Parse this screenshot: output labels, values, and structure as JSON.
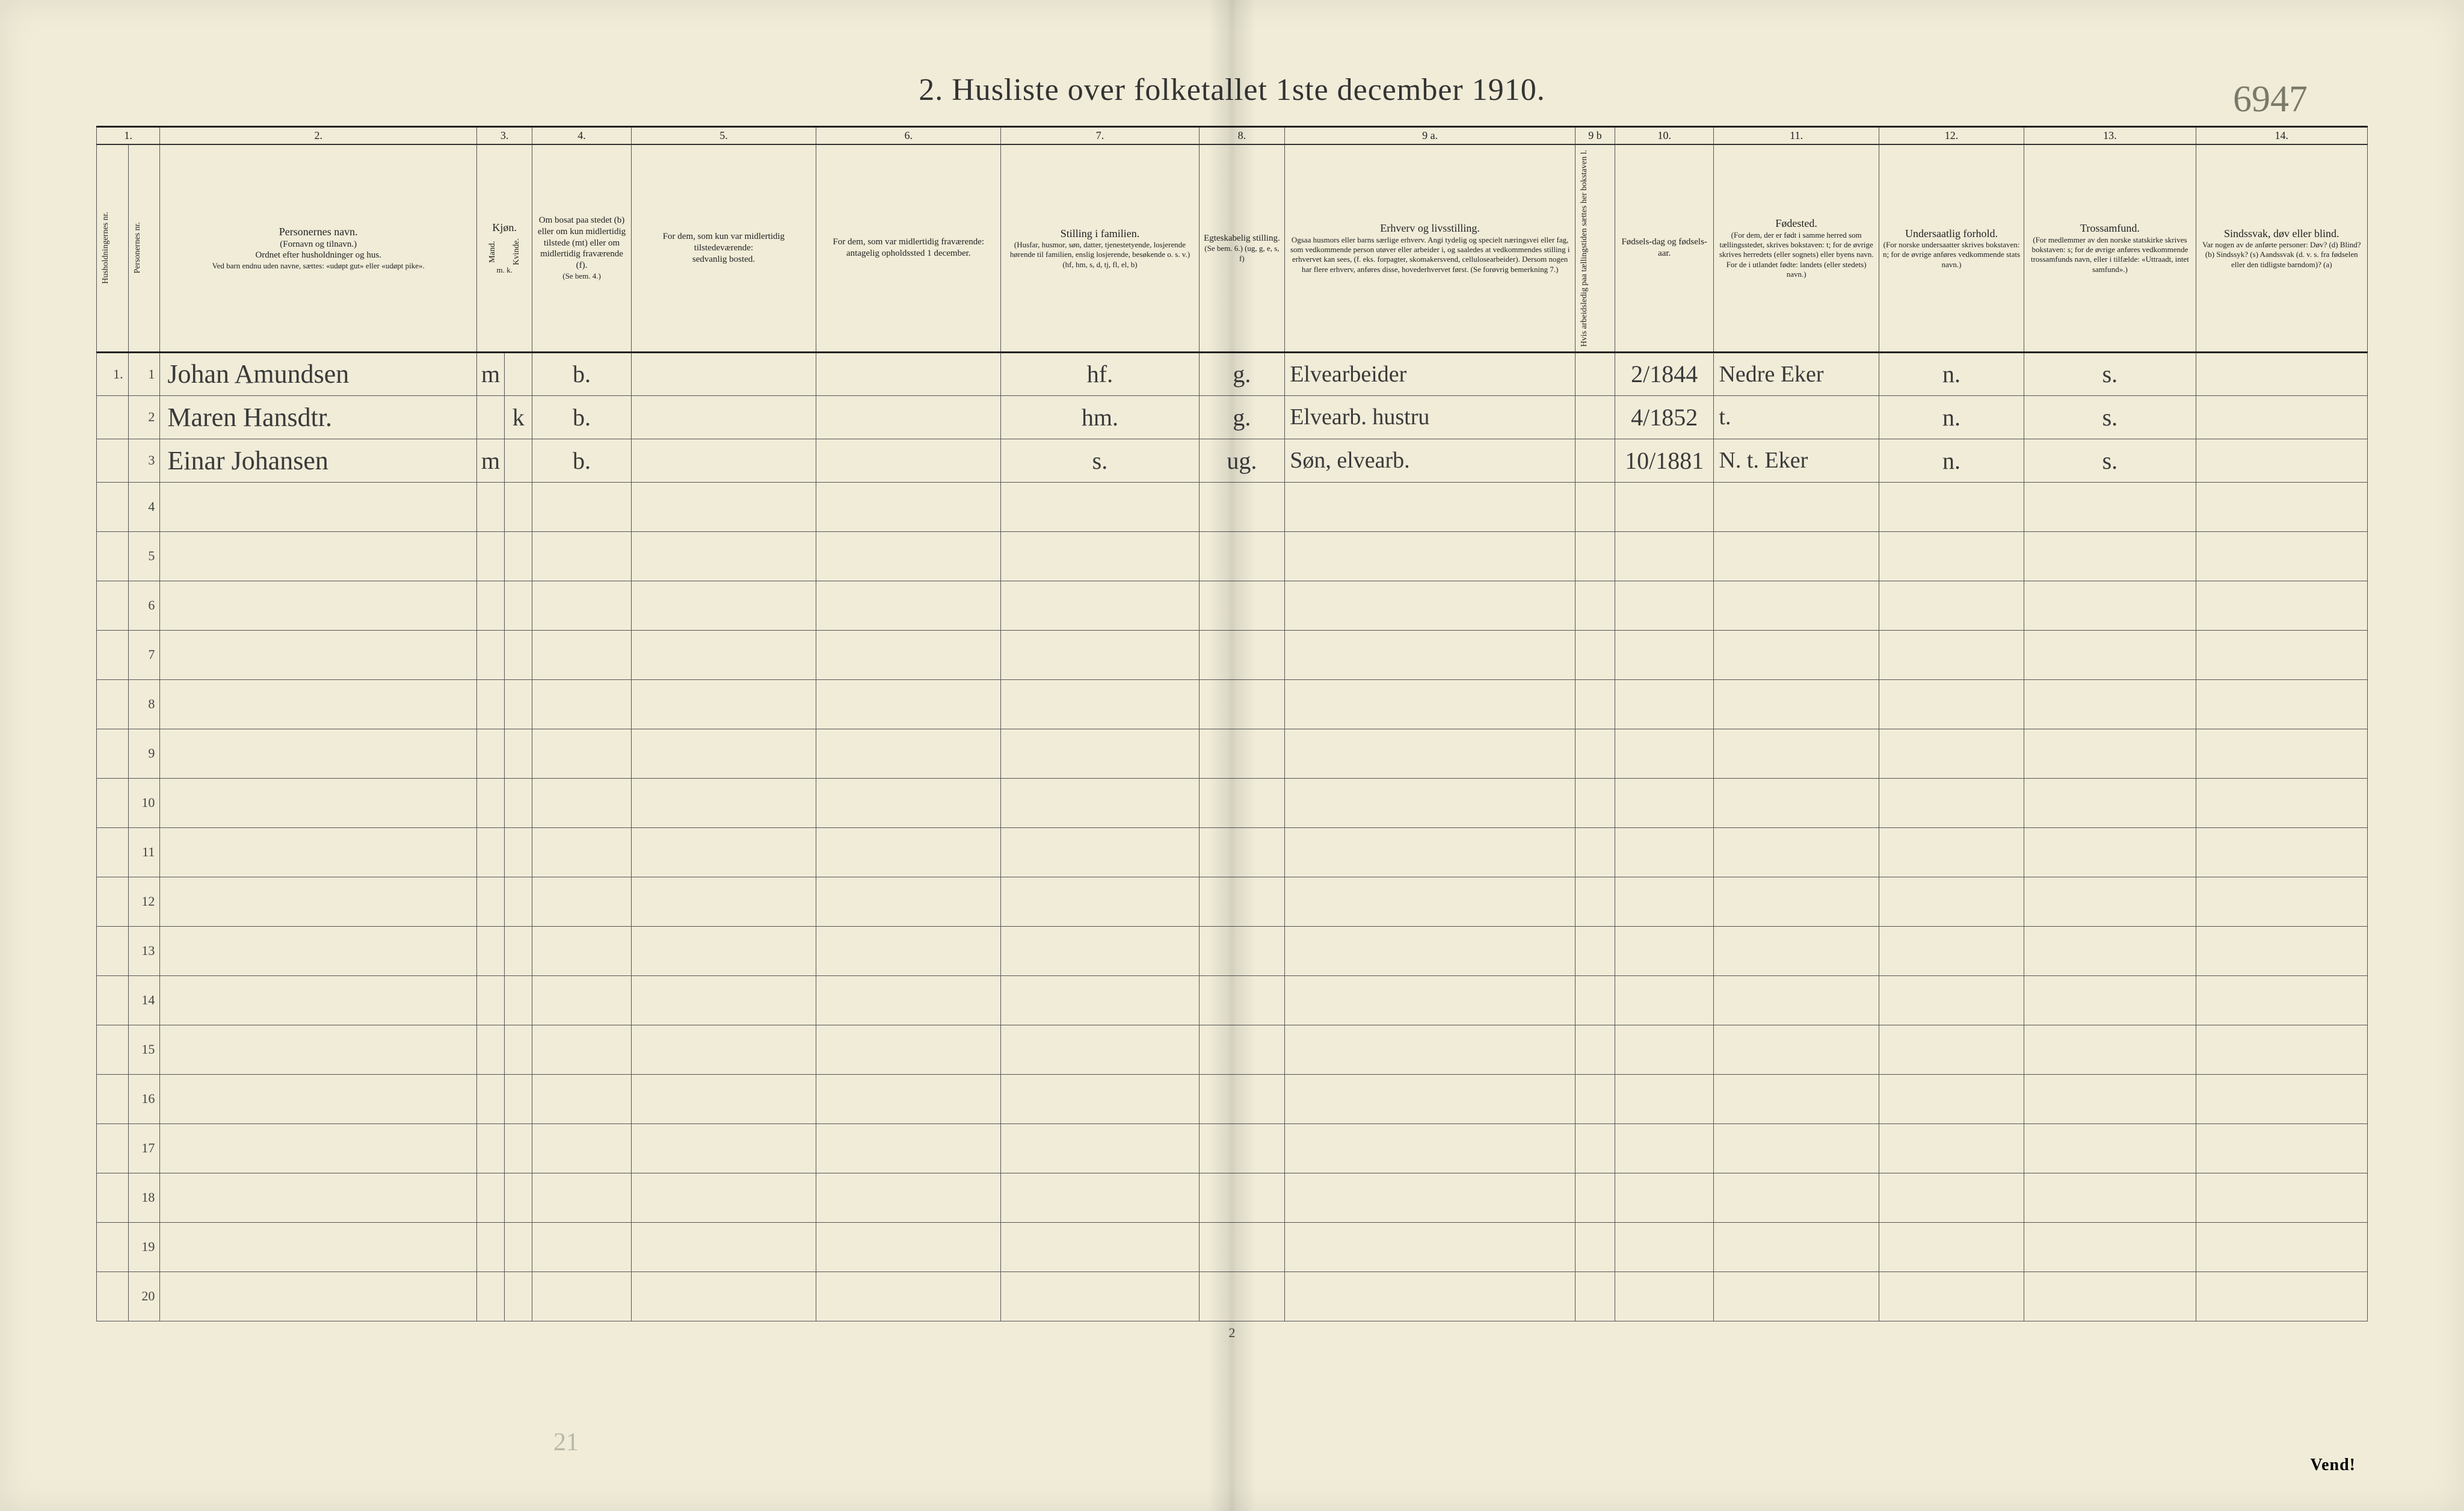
{
  "title": "2.  Husliste over folketallet 1ste december 1910.",
  "handwritten_page_no": "6947",
  "footer_page_no": "2",
  "vend_text": "Vend!",
  "faint_pencil": "21",
  "col_numbers": [
    "1.",
    "2.",
    "3.",
    "4.",
    "5.",
    "6.",
    "7.",
    "8.",
    "9 a.",
    "9 b",
    "10.",
    "11.",
    "12.",
    "13.",
    "14."
  ],
  "headers": {
    "c1a": "Husholdningernes nr.",
    "c1b": "Personernes nr.",
    "c2_title": "Personernes navn.",
    "c2_sub1": "(Fornavn og tilnavn.)",
    "c2_sub2": "Ordnet efter husholdninger og hus.",
    "c2_sub3": "Ved barn endnu uden navne, sættes: «udøpt gut» eller «udøpt pike».",
    "c3_title": "Kjøn.",
    "c3_m": "Mand.",
    "c3_k": "Kvinde.",
    "c3_mk": "m.  k.",
    "c4_title": "Om bosat paa stedet (b) eller om kun midlertidig tilstede (mt) eller om midlertidig fraværende (f).",
    "c4_sub": "(Se bem. 4.)",
    "c5_title": "For dem, som kun var midlertidig tilstedeværende:",
    "c5_sub": "sedvanlig bosted.",
    "c6_title": "For dem, som var midlertidig fraværende:",
    "c6_sub": "antagelig opholdssted 1 december.",
    "c7_title": "Stilling i familien.",
    "c7_sub1": "(Husfar, husmor, søn, datter, tjenestetyende, losjerende hørende til familien, enslig losjerende, besøkende o. s. v.)",
    "c7_sub2": "(hf, hm, s, d, tj, fl, el, b)",
    "c8_title": "Egteskabelig stilling.",
    "c8_sub": "(Se bem. 6.) (ug, g, e, s, f)",
    "c9a_title": "Erhverv og livsstilling.",
    "c9a_sub": "Ogsaa husmors eller barns særlige erhverv. Angi tydelig og specielt næringsvei eller fag, som vedkommende person utøver eller arbeider i, og saaledes at vedkommendes stilling i erhvervet kan sees, (f. eks. forpagter, skomakersvend, cellulosearbeider). Dersom nogen har flere erhverv, anføres disse, hovederhvervet først. (Se forøvrig bemerkning 7.)",
    "c9b_title": "Hvis arbeidsledig paa tællingstiden sættes her bokstaven l.",
    "c10_title": "Fødsels-dag og fødsels-aar.",
    "c11_title": "Fødested.",
    "c11_sub": "(For dem, der er født i samme herred som tællingsstedet, skrives bokstaven: t; for de øvrige skrives herredets (eller sognets) eller byens navn. For de i utlandet fødte: landets (eller stedets) navn.)",
    "c12_title": "Undersaatlig forhold.",
    "c12_sub": "(For norske undersaatter skrives bokstaven: n; for de øvrige anføres vedkommende stats navn.)",
    "c13_title": "Trossamfund.",
    "c13_sub": "(For medlemmer av den norske statskirke skrives bokstaven: s; for de øvrige anføres vedkommende trossamfunds navn, eller i tilfælde: «Uttraadt, intet samfund».)",
    "c14_title": "Sindssvak, døv eller blind.",
    "c14_sub": "Var nogen av de anførte personer: Døv? (d) Blind? (b) Sindssyk? (s) Aandssvak (d. v. s. fra fødselen eller den tidligste barndom)? (a)"
  },
  "rows": [
    {
      "hh": "1.",
      "pn": "1",
      "name": "Johan Amundsen",
      "sex_m": "m",
      "sex_k": "",
      "bosat": "b.",
      "c5": "",
      "c6": "",
      "fam": "hf.",
      "egte": "g.",
      "erhverv": "Elvearbeider",
      "c9b": "",
      "foddato": "2/1844",
      "fodested": "Nedre Eker",
      "under": "n.",
      "tros": "s.",
      "c14": ""
    },
    {
      "hh": "",
      "pn": "2",
      "name": "Maren Hansdtr.",
      "sex_m": "",
      "sex_k": "k",
      "bosat": "b.",
      "c5": "",
      "c6": "",
      "fam": "hm.",
      "egte": "g.",
      "erhverv": "Elvearb. hustru",
      "c9b": "",
      "foddato": "4/1852",
      "fodested": "t.",
      "under": "n.",
      "tros": "s.",
      "c14": ""
    },
    {
      "hh": "",
      "pn": "3",
      "name": "Einar Johansen",
      "sex_m": "m",
      "sex_k": "",
      "bosat": "b.",
      "c5": "",
      "c6": "",
      "fam": "s.",
      "egte": "ug.",
      "erhverv": "Søn, elvearb.",
      "c9b": "",
      "foddato": "10/1881",
      "fodested": "N. t. Eker",
      "under": "n.",
      "tros": "s.",
      "c14": ""
    }
  ],
  "empty_row_count": 17,
  "empty_row_start": 4
}
